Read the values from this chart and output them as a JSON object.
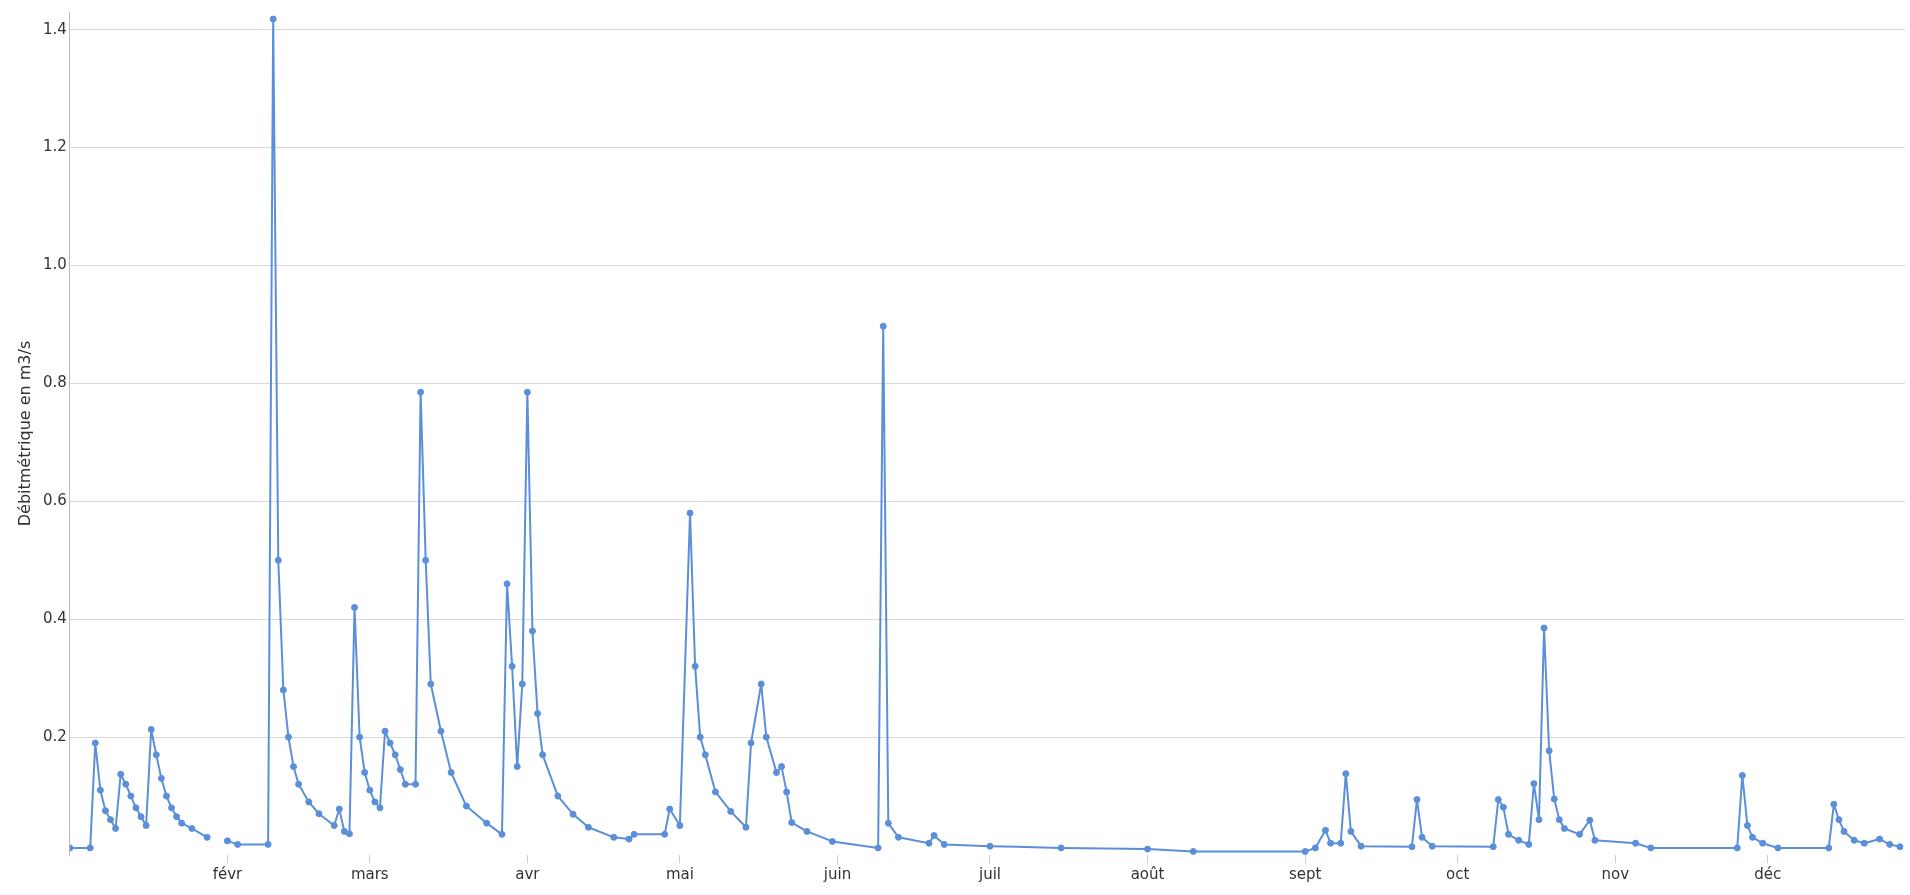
{
  "chart_data": {
    "type": "line",
    "ylabel": "Débitmétrique en m3/s",
    "xlim": [
      "--01-01",
      "--12-28"
    ],
    "xticks": [
      {
        "value": "--02-01",
        "label": "févr"
      },
      {
        "value": "--03-01",
        "label": "mars"
      },
      {
        "value": "--04-01",
        "label": "avr"
      },
      {
        "value": "--05-01",
        "label": "mai"
      },
      {
        "value": "--06-01",
        "label": "juin"
      },
      {
        "value": "--07-01",
        "label": "juil"
      },
      {
        "value": "--08-01",
        "label": "août"
      },
      {
        "value": "--09-01",
        "label": "sept"
      },
      {
        "value": "--10-01",
        "label": "oct"
      },
      {
        "value": "--11-01",
        "label": "nov"
      },
      {
        "value": "--12-01",
        "label": "déc"
      }
    ],
    "ylim": [
      0,
      1.43
    ],
    "yticks": [
      0.2,
      0.4,
      0.6,
      0.8,
      {
        "value": 1,
        "label": "1.0"
      },
      1.2,
      1.4
    ],
    "grid": "y",
    "legend": false,
    "marker": "circle",
    "line_style": "solid",
    "series": [
      {
        "color": "#5b8fd9",
        "x": [
          "--01-01",
          "--01-05",
          "--01-06",
          "--01-07",
          "--01-08",
          "--01-09",
          "--01-10",
          "--01-11",
          "--01-12",
          "--01-13",
          "--01-14",
          "--01-15",
          "--01-16",
          "--01-17",
          "--01-18",
          "--01-19",
          "--01-20",
          "--01-21",
          "--01-22",
          "--01-23",
          "--01-25",
          "--01-28",
          "--01-30",
          "--02-01",
          "--02-03",
          "--02-09",
          "--02-10",
          "--02-11",
          "--02-12",
          "--02-13",
          "--02-14",
          "--02-15",
          "--02-17",
          "--02-19",
          "--02-22",
          "--02-23",
          "--02-24",
          "--02-25",
          "--02-26",
          "--02-27",
          "--02-28",
          "--03-01",
          "--03-02",
          "--03-03",
          "--03-04",
          "--03-05",
          "--03-06",
          "--03-07",
          "--03-08",
          "--03-10",
          "--03-11",
          "--03-12",
          "--03-13",
          "--03-15",
          "--03-17",
          "--03-20",
          "--03-24",
          "--03-27",
          "--03-28",
          "--03-29",
          "--03-30",
          "--03-31",
          "--04-01",
          "--04-02",
          "--04-03",
          "--04-04",
          "--04-07",
          "--04-10",
          "--04-13",
          "--04-18",
          "--04-21",
          "--04-22",
          "--04-28",
          "--04-29",
          "--05-01",
          "--05-03",
          "--05-04",
          "--05-05",
          "--05-06",
          "--05-08",
          "--05-11",
          "--05-14",
          "--05-15",
          "--05-17",
          "--05-18",
          "--05-20",
          "--05-21",
          "--05-22",
          "--05-23",
          "--05-26",
          "--05-31",
          "--06-09",
          "--06-10",
          "--06-11",
          "--06-13",
          "--06-19",
          "--06-20",
          "--06-22",
          "--07-01",
          "--07-15",
          "--08-01",
          "--08-10",
          "--09-01",
          "--09-03",
          "--09-05",
          "--09-06",
          "--09-08",
          "--09-09",
          "--09-10",
          "--09-12",
          "--09-22",
          "--09-23",
          "--09-24",
          "--09-26",
          "--10-08",
          "--10-09",
          "--10-10",
          "--10-11",
          "--10-13",
          "--10-15",
          "--10-16",
          "--10-17",
          "--10-18",
          "--10-19",
          "--10-20",
          "--10-21",
          "--10-22",
          "--10-25",
          "--10-27",
          "--10-28",
          "--11-05",
          "--11-08",
          "--11-25",
          "--11-26",
          "--11-27",
          "--11-28",
          "--11-30",
          "--12-03",
          "--12-13",
          "--12-14",
          "--12-15",
          "--12-16",
          "--12-18",
          "--12-20",
          "--12-23",
          "--12-25",
          "--12-27"
        ],
        "values": [
          0.012,
          0.012,
          0.19,
          0.11,
          0.075,
          0.06,
          0.045,
          0.137,
          0.12,
          0.1,
          0.08,
          0.065,
          0.05,
          0.213,
          0.17,
          0.13,
          0.1,
          0.08,
          0.065,
          0.054,
          0.045,
          0.03,
          null,
          0.024,
          0.018,
          0.018,
          1.418,
          0.5,
          0.28,
          0.2,
          0.15,
          0.12,
          0.09,
          0.07,
          0.05,
          0.078,
          0.04,
          0.036,
          0.42,
          0.2,
          0.14,
          0.11,
          0.09,
          0.08,
          0.21,
          0.19,
          0.17,
          0.145,
          0.12,
          0.12,
          0.785,
          0.5,
          0.29,
          0.21,
          0.14,
          0.083,
          0.054,
          0.035,
          0.46,
          0.32,
          0.15,
          0.29,
          0.785,
          0.38,
          0.24,
          0.17,
          0.1,
          0.069,
          0.047,
          0.03,
          0.027,
          0.035,
          0.035,
          0.078,
          0.05,
          0.58,
          0.32,
          0.2,
          0.17,
          0.107,
          0.074,
          0.047,
          0.19,
          0.29,
          0.2,
          0.14,
          0.15,
          0.107,
          0.055,
          0.04,
          0.023,
          0.012,
          0.897,
          0.054,
          0.03,
          0.02,
          0.033,
          0.018,
          0.015,
          0.012,
          0.01,
          0.006,
          0.006,
          0.012,
          0.042,
          0.02,
          0.02,
          0.138,
          0.04,
          0.015,
          0.014,
          0.094,
          0.03,
          0.015,
          0.014,
          0.094,
          0.081,
          0.035,
          0.025,
          0.018,
          0.121,
          0.06,
          0.385,
          0.177,
          0.095,
          0.06,
          0.045,
          0.035,
          0.059,
          0.025,
          0.02,
          0.012,
          0.012,
          0.135,
          0.05,
          0.03,
          0.02,
          0.012,
          0.012,
          0.086,
          0.06,
          0.04,
          0.025,
          0.02,
          0.027,
          0.018,
          0.014
        ]
      }
    ]
  }
}
